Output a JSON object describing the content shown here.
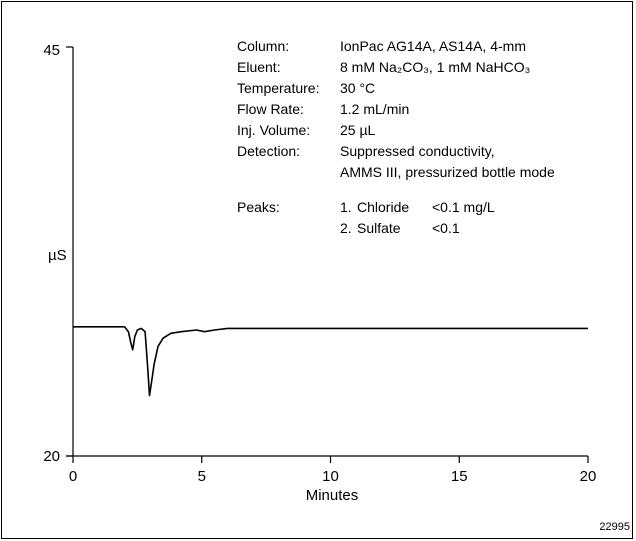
{
  "chart_data": {
    "type": "line",
    "xlabel": "Minutes",
    "ylabel": "µS",
    "xlim": [
      0,
      20
    ],
    "ylim": [
      20,
      45
    ],
    "x_ticks": [
      "0",
      "5",
      "10",
      "15",
      "20"
    ],
    "y_ticks": [
      "45",
      "20"
    ],
    "figure_id": "22995",
    "conditions": [
      {
        "label": "Column:",
        "value": "IonPac AG14A, AS14A, 4-mm"
      },
      {
        "label": "Eluent:",
        "value": "8 mM Na₂CO₃, 1 mM NaHCO₃"
      },
      {
        "label": "Temperature:",
        "value": "30 °C"
      },
      {
        "label": "Flow Rate:",
        "value": "1.2 mL/min"
      },
      {
        "label": "Inj. Volume:",
        "value": "25 µL"
      },
      {
        "label": "Detection:",
        "value": "Suppressed conductivity,"
      },
      {
        "label": "",
        "value": "AMMS III, pressurized bottle mode"
      }
    ],
    "peaks_label": "Peaks:",
    "peaks": [
      {
        "number": "1.",
        "name": "Chloride",
        "amount": "<0.1 mg/L"
      },
      {
        "number": "2.",
        "name": "Sulfate",
        "amount": "<0.1"
      }
    ],
    "series": [
      {
        "x": [
          0,
          0.5,
          1,
          1.5,
          2.0,
          2.15,
          2.25,
          2.32,
          2.4,
          2.5,
          2.65,
          2.8,
          2.9,
          2.97,
          3.05,
          3.15,
          3.3,
          3.5,
          3.8,
          4.2,
          4.8,
          5.1,
          5.5,
          6,
          8,
          10,
          12,
          14,
          16,
          18,
          20
        ],
        "y": [
          27.9,
          27.9,
          27.9,
          27.9,
          27.9,
          27.6,
          26.9,
          26.5,
          27.3,
          27.7,
          27.8,
          27.6,
          25.4,
          23.7,
          24.5,
          25.6,
          26.7,
          27.2,
          27.5,
          27.6,
          27.7,
          27.6,
          27.7,
          27.8,
          27.8,
          27.8,
          27.8,
          27.8,
          27.8,
          27.8,
          27.8
        ]
      }
    ]
  }
}
